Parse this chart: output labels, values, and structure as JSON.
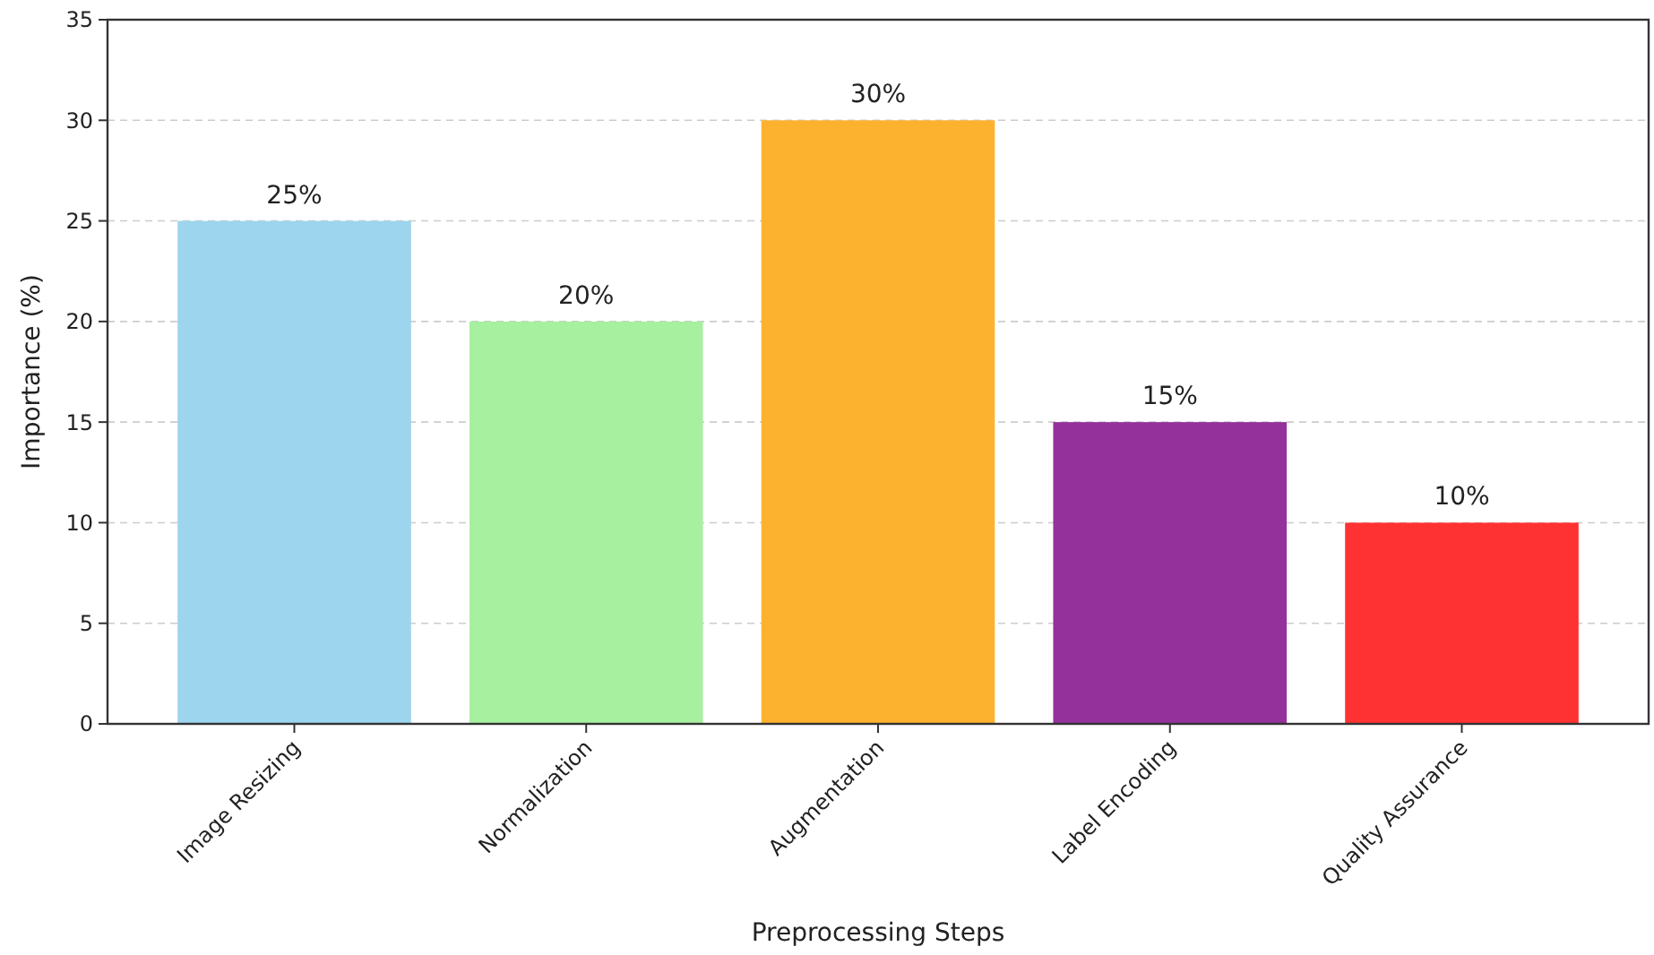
{
  "chart_data": {
    "type": "bar",
    "xlabel": "Preprocessing Steps",
    "ylabel": "Importance (%)",
    "categories": [
      "Image Resizing",
      "Normalization",
      "Augmentation",
      "Label Encoding",
      "Quality Assurance"
    ],
    "values": [
      25,
      20,
      30,
      15,
      10
    ],
    "colors": [
      "#9dd5ee",
      "#a6f0a0",
      "#fdb22f",
      "#94319a",
      "#fe3232"
    ],
    "value_labels": [
      "25%",
      "20%",
      "30%",
      "15%",
      "10%"
    ],
    "ylim": [
      0,
      35
    ],
    "yticks": [
      0,
      5,
      10,
      15,
      20,
      25,
      30,
      35
    ],
    "grid": "y"
  }
}
